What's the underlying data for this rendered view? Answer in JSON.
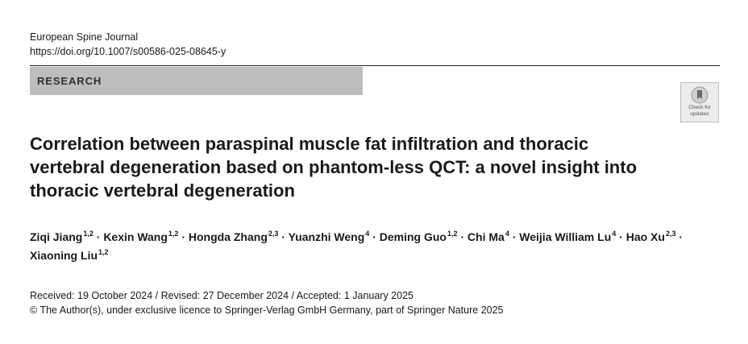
{
  "journal": {
    "name": "European Spine Journal",
    "doi": "https://doi.org/10.1007/s00586-025-08645-y"
  },
  "section_label": "RESEARCH",
  "check_updates": {
    "line1": "Check for",
    "line2": "updates"
  },
  "title": "Correlation between paraspinal muscle fat infiltration and thoracic vertebral degeneration based on phantom-less QCT: a novel insight into thoracic vertebral degeneration",
  "authors": [
    {
      "name": "Ziqi Jiang",
      "aff": "1,2"
    },
    {
      "name": "Kexin Wang",
      "aff": "1,2"
    },
    {
      "name": "Hongda Zhang",
      "aff": "2,3"
    },
    {
      "name": "Yuanzhi Weng",
      "aff": "4"
    },
    {
      "name": "Deming Guo",
      "aff": "1,2"
    },
    {
      "name": "Chi Ma",
      "aff": "4"
    },
    {
      "name": "Weijia William Lu",
      "aff": "4"
    },
    {
      "name": "Hao Xu",
      "aff": "2,3"
    },
    {
      "name": "Xiaoning Liu",
      "aff": "1,2"
    }
  ],
  "author_separator": "·",
  "dates_line": "Received: 19 October 2024 / Revised: 27 December 2024 / Accepted: 1 January 2025",
  "copyright_line": "© The Author(s), under exclusive licence to Springer-Verlag GmbH Germany, part of Springer Nature 2025"
}
